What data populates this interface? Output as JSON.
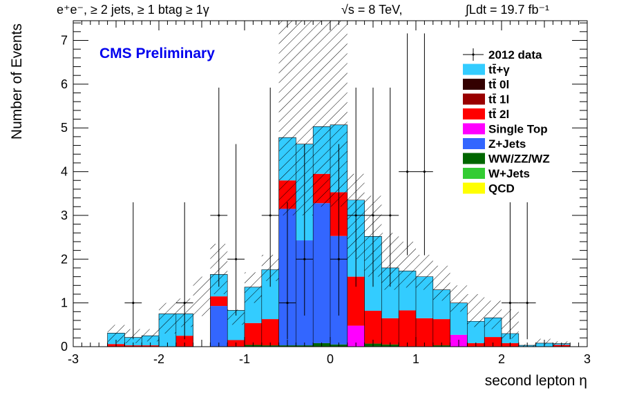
{
  "chart_data": {
    "type": "bar",
    "header": {
      "left": "e⁺e⁻, ≥ 2 jets, ≥ 1 btag ≥ 1γ",
      "energy": "√s = 8 TeV,",
      "lumi": "∫Ldt = 19.7 fb⁻¹"
    },
    "label": "CMS Preliminary",
    "xlabel": "second lepton η",
    "ylabel": "Number of Events",
    "xlim": [
      -3,
      3
    ],
    "ylim": [
      0,
      7.45
    ],
    "xticks": [
      "-3",
      "-2",
      "-1",
      "0",
      "1",
      "2",
      "3"
    ],
    "yticks": [
      "0",
      "1",
      "2",
      "3",
      "4",
      "5",
      "6",
      "7"
    ],
    "bin_edges": [
      -3.0,
      -2.8,
      -2.6,
      -2.4,
      -2.2,
      -2.0,
      -1.8,
      -1.6,
      -1.4,
      -1.2,
      -1.0,
      -0.8,
      -0.6,
      -0.4,
      -0.2,
      0.0,
      0.2,
      0.4,
      0.6,
      0.8,
      1.0,
      1.2,
      1.4,
      1.6,
      1.8,
      2.0,
      2.2,
      2.4,
      2.6,
      2.8,
      3.0
    ],
    "legend_position": "top-right",
    "series": [
      {
        "name": "QCD",
        "color": "#ffff00",
        "values": [
          0,
          0,
          0,
          0,
          0,
          0,
          0,
          0,
          0,
          0,
          0,
          0,
          0,
          0,
          0,
          0,
          0,
          0,
          0,
          0,
          0,
          0,
          0,
          0,
          0,
          0,
          0,
          0,
          0,
          0
        ]
      },
      {
        "name": "W+Jets",
        "color": "#33cc33",
        "values": [
          0,
          0,
          0,
          0,
          0,
          0,
          0,
          0,
          0,
          0,
          0,
          0,
          0,
          0,
          0,
          0,
          0,
          0,
          0,
          0,
          0,
          0,
          0,
          0,
          0,
          0,
          0,
          0,
          0,
          0
        ]
      },
      {
        "name": "WW/ZZ/WZ",
        "color": "#006600",
        "values": [
          0,
          0,
          0,
          0,
          0,
          0,
          0,
          0,
          0,
          0,
          0.04,
          0.03,
          0.03,
          0.03,
          0.08,
          0.05,
          0,
          0.07,
          0.05,
          0,
          0,
          0.03,
          0,
          0,
          0,
          0,
          0,
          0,
          0,
          0
        ]
      },
      {
        "name": "Z+Jets",
        "color": "#3366ff",
        "values": [
          0,
          0,
          0,
          0,
          0,
          0,
          0,
          0,
          0.93,
          0,
          0,
          0,
          3.12,
          2.4,
          3.2,
          2.48,
          0,
          0,
          0,
          0,
          0,
          0,
          0,
          0,
          0,
          0,
          0,
          0,
          0,
          0
        ]
      },
      {
        "name": "Single Top",
        "color": "#ff00ff",
        "values": [
          0,
          0,
          0,
          0,
          0,
          0,
          0,
          0,
          0,
          0,
          0,
          0,
          0,
          0,
          0,
          0,
          0.48,
          0,
          0,
          0,
          0,
          0,
          0.27,
          0,
          0,
          0,
          0,
          0,
          0,
          0
        ]
      },
      {
        "name": "tt̄ 2l",
        "color": "#ff0000",
        "values": [
          0,
          0,
          0.06,
          0.03,
          0.03,
          0,
          0.25,
          0,
          0.22,
          0.15,
          0.5,
          0.6,
          0.65,
          0,
          0.67,
          1.0,
          1.12,
          0.75,
          0.6,
          0.83,
          0.65,
          0.6,
          0,
          0.08,
          0.22,
          0.08,
          0,
          0,
          0.04,
          0
        ]
      },
      {
        "name": "tt̄ 1l",
        "color": "#990000",
        "values": [
          0,
          0,
          0,
          0,
          0,
          0,
          0,
          0,
          0,
          0,
          0,
          0,
          0,
          0,
          0,
          0,
          0,
          0,
          0,
          0,
          0,
          0,
          0,
          0,
          0,
          0,
          0,
          0,
          0,
          0
        ]
      },
      {
        "name": "tt̄ 0l",
        "color": "#330000",
        "values": [
          0,
          0,
          0,
          0,
          0,
          0,
          0,
          0,
          0,
          0,
          0,
          0,
          0,
          0,
          0,
          0,
          0,
          0,
          0,
          0,
          0,
          0,
          0,
          0,
          0,
          0,
          0,
          0,
          0,
          0
        ]
      },
      {
        "name": "tt̄+γ",
        "color": "#33ccff",
        "values": [
          0,
          0,
          0.25,
          0.18,
          0.22,
          0.75,
          0.5,
          0,
          0.5,
          0.68,
          0.82,
          1.13,
          0.98,
          2.2,
          1.08,
          1.54,
          1.75,
          1.7,
          1.15,
          0.9,
          0.95,
          0.67,
          0.73,
          0.5,
          0.44,
          0.22,
          0.03,
          0.08,
          0.03,
          0
        ]
      }
    ],
    "uncertainty_band": {
      "low": [
        0,
        0,
        0.1,
        0.08,
        0.12,
        0.3,
        0.45,
        0.7,
        1.2,
        0.5,
        1.0,
        1.5,
        3.0,
        3.0,
        3.2,
        3.2,
        2.0,
        1.6,
        1.3,
        1.35,
        1.3,
        1.05,
        0.8,
        0.45,
        0.4,
        0.18,
        0,
        0.03,
        0.03,
        0
      ],
      "high": [
        0,
        0,
        0.5,
        0.4,
        0.4,
        1.0,
        1.1,
        1.6,
        2.35,
        0.85,
        1.7,
        2.1,
        7.45,
        7.45,
        7.45,
        7.45,
        3.95,
        3.45,
        2.6,
        2.4,
        2.1,
        1.85,
        1.4,
        1.2,
        1.05,
        0.85,
        0.05,
        0.18,
        0.12,
        0
      ]
    },
    "data": {
      "name": "2012 data",
      "points": [
        {
          "x": -2.3,
          "y": 1,
          "err": [
            0.83,
            2.3
          ]
        },
        {
          "x": -1.7,
          "y": 1,
          "err": [
            0.83,
            2.3
          ]
        },
        {
          "x": -1.3,
          "y": 3,
          "err": [
            1.63,
            2.92
          ]
        },
        {
          "x": -1.1,
          "y": 2,
          "err": [
            1.29,
            2.63
          ]
        },
        {
          "x": -0.7,
          "y": 3,
          "err": [
            1.63,
            2.92
          ]
        },
        {
          "x": -0.5,
          "y": 1,
          "err": [
            0.83,
            2.3
          ]
        },
        {
          "x": -0.3,
          "y": 2,
          "err": [
            1.29,
            2.63
          ]
        },
        {
          "x": 0.1,
          "y": 2,
          "err": [
            1.29,
            2.63
          ]
        },
        {
          "x": 0.3,
          "y": 3,
          "err": [
            1.63,
            2.92
          ]
        },
        {
          "x": 0.5,
          "y": 3,
          "err": [
            1.63,
            2.92
          ]
        },
        {
          "x": 0.7,
          "y": 3,
          "err": [
            1.63,
            2.92
          ]
        },
        {
          "x": 0.9,
          "y": 4,
          "err": [
            1.91,
            3.16
          ]
        },
        {
          "x": 1.1,
          "y": 4,
          "err": [
            1.91,
            3.16
          ]
        },
        {
          "x": 2.1,
          "y": 1,
          "err": [
            0.83,
            2.3
          ]
        },
        {
          "x": 2.3,
          "y": 1,
          "err": [
            0.83,
            2.3
          ]
        }
      ]
    },
    "legend": [
      {
        "label": "2012 data",
        "kind": "marker",
        "color": "#000000"
      },
      {
        "label": "tt̄+γ",
        "kind": "box",
        "color": "#33ccff"
      },
      {
        "label": "tt̄ 0l",
        "kind": "box",
        "color": "#330000"
      },
      {
        "label": "tt̄ 1l",
        "kind": "box",
        "color": "#990000"
      },
      {
        "label": "tt̄ 2l",
        "kind": "box",
        "color": "#ff0000"
      },
      {
        "label": "Single Top",
        "kind": "box",
        "color": "#ff00ff"
      },
      {
        "label": "Z+Jets",
        "kind": "box",
        "color": "#3366ff"
      },
      {
        "label": "WW/ZZ/WZ",
        "kind": "box",
        "color": "#006600"
      },
      {
        "label": "W+Jets",
        "kind": "box",
        "color": "#33cc33"
      },
      {
        "label": "QCD",
        "kind": "box",
        "color": "#ffff00"
      }
    ]
  }
}
